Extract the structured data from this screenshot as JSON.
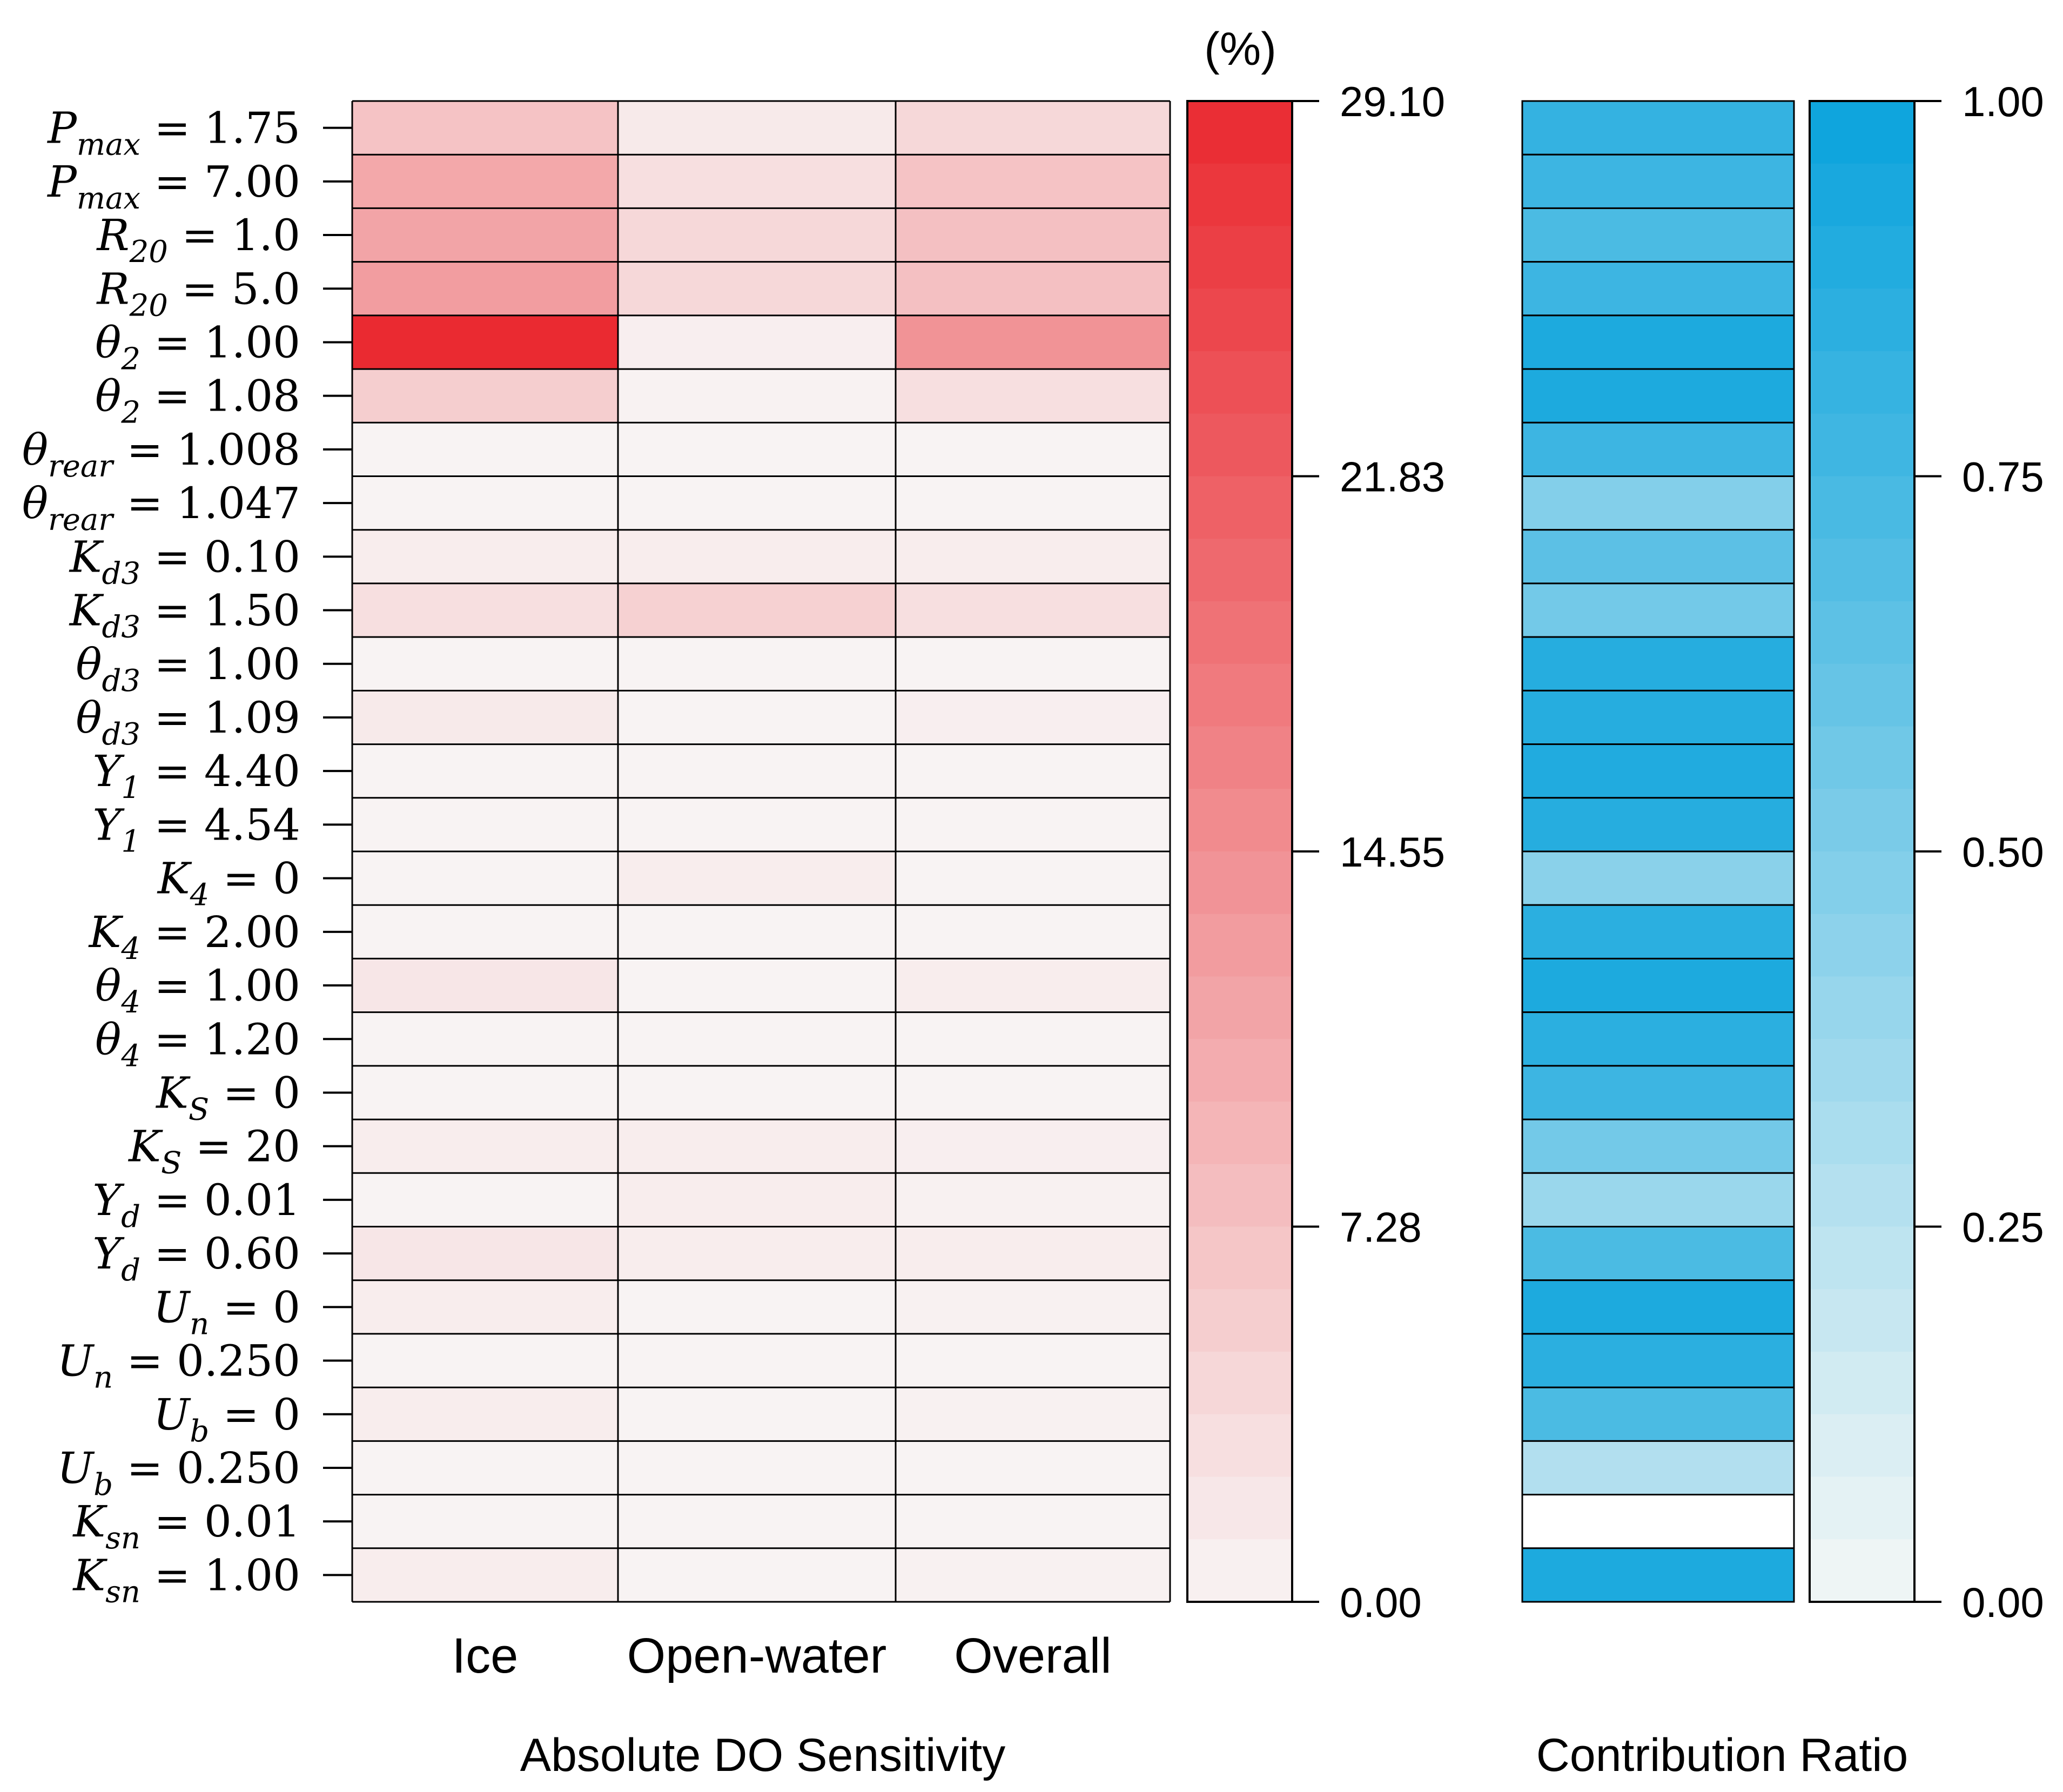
{
  "chart_data": [
    {
      "type": "heatmap",
      "title": "",
      "xlabel": "Absolute DO Sensitivity",
      "ylabel": "",
      "columns": [
        "Ice",
        "Open-water",
        "Overall"
      ],
      "rows": [
        {
          "base": "P",
          "sub": "max",
          "value": "1.75"
        },
        {
          "base": "P",
          "sub": "max",
          "value": "7.00"
        },
        {
          "base": "R",
          "sub": "20",
          "value": "1.0"
        },
        {
          "base": "R",
          "sub": "20",
          "value": "5.0"
        },
        {
          "base": "θ",
          "sub": "2",
          "value": "1.00"
        },
        {
          "base": "θ",
          "sub": "2",
          "value": "1.08"
        },
        {
          "base": "θ",
          "sub": "rear",
          "value": "1.008"
        },
        {
          "base": "θ",
          "sub": "rear",
          "value": "1.047"
        },
        {
          "base": "K",
          "sub": "d3",
          "value": "0.10"
        },
        {
          "base": "K",
          "sub": "d3",
          "value": "1.50"
        },
        {
          "base": "θ",
          "sub": "d3",
          "value": "1.00"
        },
        {
          "base": "θ",
          "sub": "d3",
          "value": "1.09"
        },
        {
          "base": "Y",
          "sub": "1",
          "value": "4.40"
        },
        {
          "base": "Y",
          "sub": "1",
          "value": "4.54"
        },
        {
          "base": "K",
          "sub": "4",
          "value": "0"
        },
        {
          "base": "K",
          "sub": "4",
          "value": "2.00"
        },
        {
          "base": "θ",
          "sub": "4",
          "value": "1.00"
        },
        {
          "base": "θ",
          "sub": "4",
          "value": "1.20"
        },
        {
          "base": "K",
          "sub": "S",
          "value": "0"
        },
        {
          "base": "K",
          "sub": "S",
          "value": "20"
        },
        {
          "base": "Y",
          "sub": "d",
          "value": "0.01"
        },
        {
          "base": "Y",
          "sub": "d",
          "value": "0.60"
        },
        {
          "base": "U",
          "sub": "n",
          "value": "0"
        },
        {
          "base": "U",
          "sub": "n",
          "value": "0.250"
        },
        {
          "base": "U",
          "sub": "b",
          "value": "0"
        },
        {
          "base": "U",
          "sub": "b",
          "value": "0.250"
        },
        {
          "base": "K",
          "sub": "sn",
          "value": "0.01"
        },
        {
          "base": "K",
          "sub": "sn",
          "value": "1.00"
        }
      ],
      "values": [
        [
          7.0,
          1.5,
          4.0
        ],
        [
          11.0,
          3.0,
          7.0
        ],
        [
          11.5,
          4.0,
          7.5
        ],
        [
          12.5,
          4.0,
          7.5
        ],
        [
          29.1,
          0.8,
          14.0
        ],
        [
          5.5,
          0.3,
          3.0
        ],
        [
          0.2,
          0.1,
          0.2
        ],
        [
          0.2,
          0.1,
          0.2
        ],
        [
          1.0,
          1.0,
          1.0
        ],
        [
          3.0,
          5.0,
          3.0
        ],
        [
          0.2,
          0.1,
          0.2
        ],
        [
          1.5,
          0.1,
          0.8
        ],
        [
          0.2,
          0.1,
          0.2
        ],
        [
          0.2,
          0.1,
          0.2
        ],
        [
          0.2,
          1.0,
          0.2
        ],
        [
          0.2,
          0.1,
          0.2
        ],
        [
          2.0,
          0.1,
          1.0
        ],
        [
          0.2,
          0.1,
          0.2
        ],
        [
          0.2,
          0.1,
          0.2
        ],
        [
          1.0,
          1.0,
          0.8
        ],
        [
          0.2,
          1.0,
          0.5
        ],
        [
          2.0,
          1.0,
          1.0
        ],
        [
          1.0,
          0.1,
          0.5
        ],
        [
          0.2,
          0.1,
          0.2
        ],
        [
          1.0,
          0.1,
          0.5
        ],
        [
          0.2,
          0.1,
          0.2
        ],
        [
          0.2,
          0.1,
          0.2
        ],
        [
          1.0,
          0.1,
          0.5
        ]
      ],
      "colorbar": {
        "unit": "(%)",
        "min": 0.0,
        "max": 29.1,
        "ticks": [
          "29.10",
          "21.83",
          "14.55",
          "7.28",
          "0.00"
        ],
        "colors": [
          "#f8f4f4",
          "#ea2a31"
        ]
      }
    },
    {
      "type": "heatmap",
      "title": "",
      "xlabel": "Contribution Ratio",
      "ylabel": "",
      "values": [
        0.82,
        0.78,
        0.72,
        0.78,
        0.92,
        0.92,
        0.78,
        0.48,
        0.65,
        0.55,
        0.88,
        0.88,
        0.9,
        0.88,
        0.45,
        0.86,
        0.92,
        0.86,
        0.78,
        0.55,
        0.38,
        0.72,
        0.92,
        0.86,
        0.72,
        0.28,
        0.0,
        0.92
      ],
      "colorbar": {
        "min": 0.0,
        "max": 1.0,
        "ticks": [
          "1.00",
          "0.75",
          "0.50",
          "0.25",
          "0.00"
        ],
        "colors": [
          "#f3f7f6",
          "#0aa3dc"
        ]
      }
    }
  ]
}
